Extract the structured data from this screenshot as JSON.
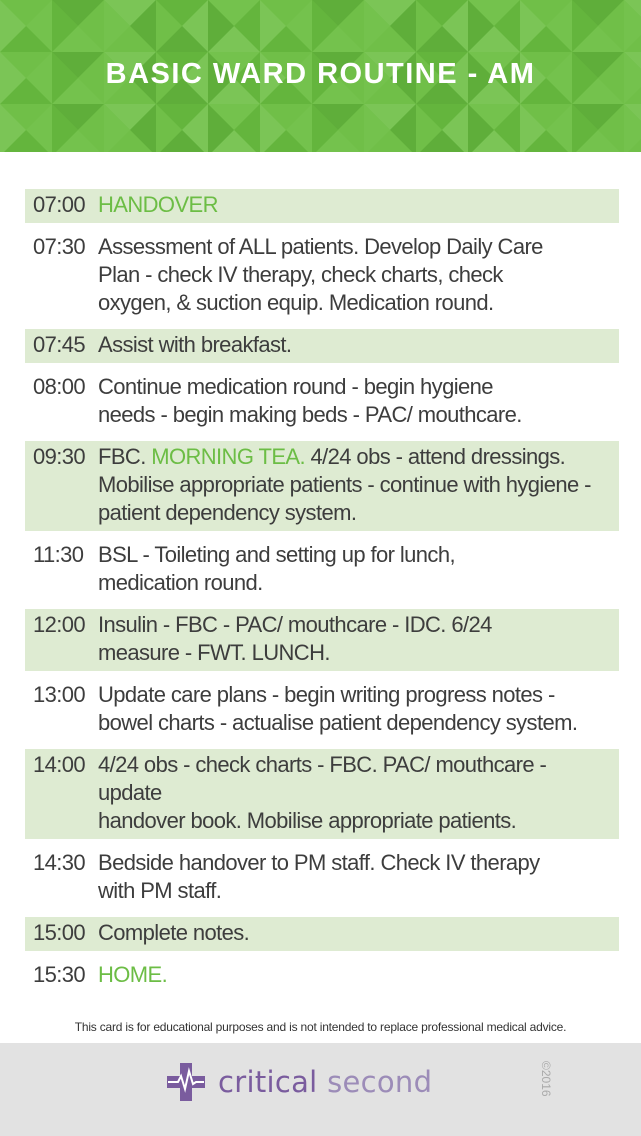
{
  "header": {
    "title": "BASIC WARD ROUTINE - AM",
    "accent_color": "#6cbd45"
  },
  "schedule": [
    {
      "time": "07:00",
      "shaded": true,
      "parts": [
        {
          "text": "HANDOVER",
          "green": true
        }
      ]
    },
    {
      "time": "07:30",
      "shaded": false,
      "parts": [
        {
          "text": "Assessment of ALL patients. Develop Daily Care\nPlan - check IV therapy, check charts, check\noxygen, & suction equip. Medication round.",
          "green": false
        }
      ]
    },
    {
      "time": "07:45",
      "shaded": true,
      "parts": [
        {
          "text": "Assist with breakfast.",
          "green": false
        }
      ]
    },
    {
      "time": "08:00",
      "shaded": false,
      "parts": [
        {
          "text": "Continue medication round - begin hygiene\nneeds - begin making beds - PAC/ mouthcare.",
          "green": false
        }
      ]
    },
    {
      "time": "09:30",
      "shaded": true,
      "parts": [
        {
          "text": "FBC. ",
          "green": false
        },
        {
          "text": "MORNING TEA.",
          "green": true
        },
        {
          "text": " 4/24 obs - attend dressings. Mobilise appropriate patients - continue with hygiene - patient dependency system.",
          "green": false
        }
      ]
    },
    {
      "time": "11:30",
      "shaded": false,
      "parts": [
        {
          "text": "BSL - Toileting and setting up for lunch,\nmedication round.",
          "green": false
        }
      ]
    },
    {
      "time": "12:00",
      "shaded": true,
      "parts": [
        {
          "text": "Insulin - FBC - PAC/ mouthcare - IDC. 6/24\nmeasure - FWT. LUNCH.",
          "green": false
        }
      ]
    },
    {
      "time": "13:00",
      "shaded": false,
      "parts": [
        {
          "text": "Update care plans - begin writing progress notes - bowel charts - actualise patient dependency system.",
          "green": false
        }
      ]
    },
    {
      "time": "14:00",
      "shaded": true,
      "parts": [
        {
          "text": "4/24 obs - check charts - FBC. PAC/ mouthcare - update\nhandover book. Mobilise appropriate patients.",
          "green": false
        }
      ]
    },
    {
      "time": "14:30",
      "shaded": false,
      "parts": [
        {
          "text": "Bedside handover to PM staff. Check IV therapy\nwith PM staff.",
          "green": false
        }
      ]
    },
    {
      "time": "15:00",
      "shaded": true,
      "parts": [
        {
          "text": "Complete notes.",
          "green": false
        }
      ]
    },
    {
      "time": "15:30",
      "shaded": false,
      "parts": [
        {
          "text": "HOME.",
          "green": true
        }
      ]
    }
  ],
  "disclaimer": "This card is for educational purposes and is not intended to replace professional medical advice.",
  "footer": {
    "brand_word1": "critical",
    "brand_word2": "second",
    "logo_icon": "medical-cross-heartbeat-icon",
    "copyright": "©2016"
  }
}
